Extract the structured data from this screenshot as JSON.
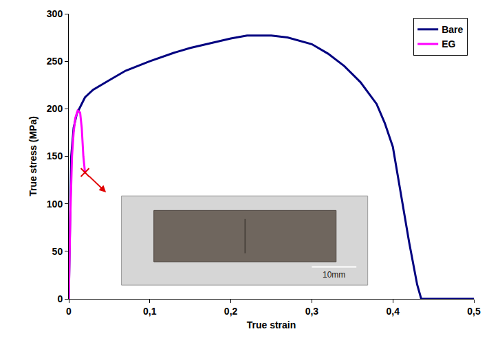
{
  "chart_data": {
    "type": "line",
    "x_label": "True strain",
    "y_label": "True stress (MPa)",
    "series": [
      {
        "name": "Bare",
        "color": "#000080",
        "x": [
          0,
          0.003,
          0.006,
          0.01,
          0.02,
          0.03,
          0.05,
          0.07,
          0.1,
          0.13,
          0.15,
          0.18,
          0.2,
          0.22,
          0.25,
          0.27,
          0.3,
          0.32,
          0.34,
          0.36,
          0.38,
          0.39,
          0.4,
          0.41,
          0.42,
          0.43,
          0.435,
          0.5
        ],
        "values": [
          0,
          150,
          180,
          195,
          212,
          220,
          230,
          240,
          250,
          259,
          264,
          270,
          274,
          277,
          277,
          275,
          268,
          258,
          245,
          228,
          205,
          185,
          160,
          110,
          60,
          15,
          0,
          0
        ]
      },
      {
        "name": "EG",
        "color": "#ff00ff",
        "x": [
          0,
          0.002,
          0.004,
          0.006,
          0.008,
          0.011,
          0.014,
          0.016,
          0.018,
          0.02
        ],
        "values": [
          0,
          90,
          150,
          175,
          190,
          198,
          196,
          180,
          150,
          133
        ],
        "marker": "x"
      }
    ],
    "xlim": [
      0,
      0.5
    ],
    "xticks": [
      0,
      {
        "value": 0.1,
        "label": "0,1"
      },
      {
        "value": 0.2,
        "label": "0,2"
      },
      {
        "value": 0.3,
        "label": "0,3"
      },
      {
        "value": 0.4,
        "label": "0,4"
      },
      {
        "value": 0.5,
        "label": "0,5"
      }
    ],
    "ylim": [
      0,
      300
    ],
    "yticks": [
      0,
      50,
      100,
      150,
      200,
      250,
      300
    ],
    "grid": false,
    "legend": "top right",
    "annotations": [
      "10mm"
    ]
  }
}
